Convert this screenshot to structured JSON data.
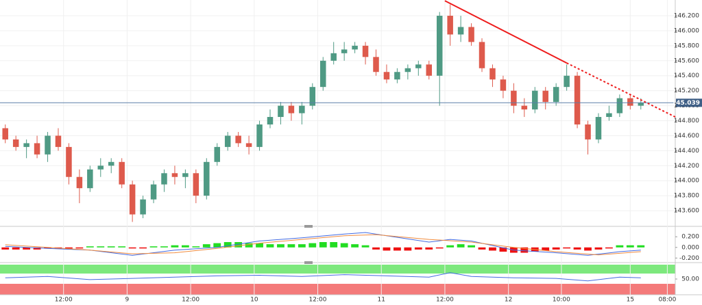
{
  "chart_data": [
    {
      "type": "candlestick",
      "x": [
        1,
        3,
        5,
        7,
        9,
        11,
        13,
        15,
        17,
        19,
        21,
        23,
        25,
        27,
        29,
        31,
        33,
        35,
        37,
        39,
        41,
        43,
        45,
        47,
        49,
        51,
        53,
        55,
        57,
        59,
        61,
        63,
        65,
        67,
        69,
        71,
        73,
        75,
        77,
        79,
        81,
        83,
        85,
        87,
        89,
        91,
        93,
        95,
        97,
        99,
        101,
        103,
        105,
        107,
        109,
        111,
        113,
        115,
        117,
        119,
        121
      ],
      "open": [
        144.7,
        144.55,
        144.45,
        144.5,
        144.35,
        144.6,
        144.45,
        144.05,
        143.9,
        144.15,
        144.2,
        144.25,
        143.95,
        143.55,
        143.75,
        143.95,
        144.1,
        144.05,
        144.1,
        143.8,
        144.25,
        144.45,
        144.6,
        144.5,
        144.45,
        144.75,
        144.85,
        145.0,
        144.9,
        145.0,
        145.25,
        145.6,
        145.7,
        145.75,
        145.8,
        145.65,
        145.45,
        145.35,
        145.45,
        145.5,
        145.55,
        145.4,
        146.2,
        145.95,
        146.05,
        145.85,
        145.5,
        145.35,
        145.2,
        145.0,
        144.95,
        145.2,
        145.05,
        145.25,
        145.4,
        144.75,
        144.55,
        144.85,
        144.9,
        145.1,
        145.0
      ],
      "high": [
        144.75,
        144.6,
        144.55,
        144.6,
        144.65,
        144.7,
        144.5,
        144.15,
        144.2,
        144.3,
        144.3,
        144.3,
        144.0,
        143.8,
        144.0,
        144.15,
        144.2,
        144.15,
        144.15,
        144.3,
        144.5,
        144.65,
        144.65,
        144.6,
        144.8,
        144.95,
        145.05,
        145.05,
        145.05,
        145.3,
        145.65,
        145.85,
        145.85,
        145.85,
        145.85,
        145.75,
        145.55,
        145.5,
        145.55,
        145.6,
        145.6,
        146.25,
        146.35,
        146.2,
        146.1,
        145.9,
        145.55,
        145.4,
        145.3,
        145.1,
        145.25,
        145.25,
        145.3,
        145.55,
        145.45,
        144.8,
        144.9,
        145.0,
        145.15,
        145.15,
        145.1
      ],
      "low": [
        144.5,
        144.4,
        144.3,
        144.3,
        144.25,
        144.4,
        143.95,
        143.7,
        143.85,
        144.05,
        144.1,
        143.9,
        143.45,
        143.5,
        143.7,
        143.85,
        143.95,
        143.9,
        143.7,
        143.75,
        144.2,
        144.4,
        144.45,
        144.35,
        144.4,
        144.7,
        144.75,
        144.8,
        144.75,
        144.95,
        145.2,
        145.55,
        145.6,
        145.7,
        145.55,
        145.4,
        145.3,
        145.3,
        145.35,
        145.4,
        145.35,
        145.0,
        145.8,
        145.85,
        145.8,
        145.45,
        145.25,
        145.1,
        144.9,
        144.85,
        144.9,
        144.95,
        145.0,
        145.2,
        144.7,
        144.35,
        144.5,
        144.8,
        144.85,
        144.95,
        144.95
      ],
      "close": [
        144.55,
        144.45,
        144.5,
        144.35,
        144.6,
        144.45,
        144.05,
        143.9,
        144.15,
        144.2,
        144.25,
        143.95,
        143.55,
        143.75,
        143.95,
        144.1,
        144.05,
        144.1,
        143.8,
        144.25,
        144.45,
        144.6,
        144.5,
        144.45,
        144.75,
        144.85,
        145.0,
        144.9,
        145.0,
        145.25,
        145.6,
        145.7,
        145.75,
        145.8,
        145.65,
        145.45,
        145.35,
        145.45,
        145.5,
        145.55,
        145.4,
        146.2,
        145.95,
        146.05,
        145.85,
        145.5,
        145.35,
        145.2,
        145.0,
        144.95,
        145.2,
        145.05,
        145.25,
        145.4,
        144.75,
        144.55,
        144.85,
        144.9,
        145.1,
        145.0,
        145.04
      ],
      "up_color": "#4f9a84",
      "down_color": "#de5a4c",
      "xlim": [
        0,
        127.5
      ],
      "xticks": [
        {
          "value": 12,
          "label": "12:00"
        },
        {
          "value": 24,
          "label": "9"
        },
        {
          "value": 36,
          "label": "12:00"
        },
        {
          "value": 48,
          "label": "10"
        },
        {
          "value": 60,
          "label": "12:00"
        },
        {
          "value": 72,
          "label": "11"
        },
        {
          "value": 84,
          "label": "12:00"
        },
        {
          "value": 96,
          "label": "12"
        },
        {
          "value": 106,
          "label": "10:00"
        },
        {
          "value": 119,
          "label": "15"
        },
        {
          "value": 126,
          "label": "08:00"
        }
      ],
      "ylim": [
        143.4,
        146.41
      ],
      "yticks": [
        {
          "value": 143.6,
          "label": "143.600"
        },
        {
          "value": 143.8,
          "label": "143.800"
        },
        {
          "value": 144.0,
          "label": "144.000"
        },
        {
          "value": 144.2,
          "label": "144.200"
        },
        {
          "value": 144.4,
          "label": "144.400"
        },
        {
          "value": 144.6,
          "label": "144.600"
        },
        {
          "value": 144.8,
          "label": "144.800"
        },
        {
          "value": 145.0,
          "label": "145.000"
        },
        {
          "value": 145.2,
          "label": "145.200"
        },
        {
          "value": 145.4,
          "label": "145.400"
        },
        {
          "value": 145.6,
          "label": "145.600"
        },
        {
          "value": 145.8,
          "label": "145.800"
        },
        {
          "value": 146.0,
          "label": "146.000"
        },
        {
          "value": 146.2,
          "label": "146.200"
        }
      ],
      "grid": true,
      "current_price": {
        "value": 145.039,
        "label": "145.039"
      },
      "trendline": {
        "color": "#ee1c1c",
        "x": [
          84,
          107,
          127.5
        ],
        "y": [
          146.4,
          145.57,
          144.85
        ]
      }
    },
    {
      "type": "macd",
      "ylim": [
        -0.26,
        0.37
      ],
      "yticks": [
        {
          "value": -0.2,
          "label": "-0.200"
        },
        {
          "value": 0,
          "label": "0.000"
        },
        {
          "value": 0.2,
          "label": "0.200"
        }
      ],
      "histogram": {
        "up_color": "#22dd22",
        "down_color": "#ee1111",
        "values": [
          -0.04,
          -0.04,
          -0.04,
          -0.04,
          -0.02,
          -0.02,
          -0.02,
          -0.02,
          0.02,
          0.02,
          0.02,
          0.02,
          -0.02,
          -0.02,
          0.02,
          0.02,
          0.04,
          0.04,
          0.02,
          0.06,
          0.08,
          0.1,
          0.1,
          0.08,
          0.08,
          0.06,
          0.06,
          0.06,
          0.06,
          0.08,
          0.1,
          0.1,
          0.08,
          0.06,
          0.04,
          -0.04,
          -0.06,
          -0.06,
          -0.06,
          -0.04,
          -0.04,
          -0.02,
          0.04,
          0.06,
          0.04,
          -0.04,
          -0.06,
          -0.08,
          -0.1,
          -0.1,
          -0.08,
          -0.06,
          -0.04,
          -0.02,
          -0.04,
          -0.06,
          -0.04,
          -0.02,
          0.04,
          0.04,
          0.04
        ]
      },
      "series": [
        {
          "color": "#4169e1",
          "x": [
            1,
            9,
            17,
            25,
            33,
            41,
            49,
            57,
            65,
            69,
            73,
            81,
            85,
            89,
            97,
            105,
            111,
            117,
            121
          ],
          "values": [
            0.02,
            -0.02,
            -0.05,
            -0.15,
            -0.05,
            0.0,
            0.12,
            0.18,
            0.25,
            0.28,
            0.22,
            0.1,
            0.15,
            0.12,
            -0.05,
            -0.1,
            -0.15,
            -0.08,
            -0.05
          ]
        },
        {
          "color": "#f08a3c",
          "x": [
            1,
            9,
            17,
            25,
            33,
            41,
            49,
            57,
            65,
            71,
            81,
            89,
            97,
            105,
            113,
            121
          ],
          "values": [
            0.05,
            0.0,
            -0.05,
            -0.12,
            -0.1,
            -0.02,
            0.08,
            0.15,
            0.22,
            0.24,
            0.15,
            0.1,
            0.0,
            -0.08,
            -0.14,
            -0.08
          ]
        }
      ]
    },
    {
      "type": "line",
      "ylim": [
        25,
        75
      ],
      "yticks": [
        {
          "value": 50,
          "label": "50.00"
        }
      ],
      "series": [
        {
          "color": "#4169e1",
          "x": [
            1,
            9,
            17,
            25,
            33,
            41,
            49,
            57,
            65,
            73,
            81,
            85,
            89,
            97,
            105,
            111,
            117,
            121
          ],
          "values": [
            52,
            54,
            49,
            51,
            53,
            55,
            56,
            54,
            57,
            55,
            53,
            60,
            54,
            52,
            51,
            47,
            53,
            52
          ]
        }
      ]
    }
  ]
}
